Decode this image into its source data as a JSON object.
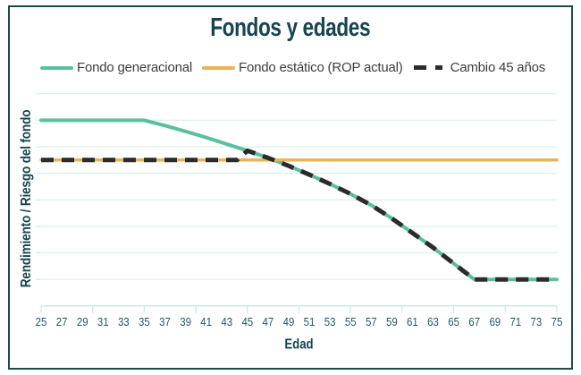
{
  "frame": {
    "border_color": "#1d4b47",
    "background": "#ffffff"
  },
  "colors": {
    "title_text": "#16454f",
    "axis_label_text": "#16454f",
    "tick_label_text": "#1e5766",
    "legend_text": "#3d3d3d",
    "gridline": "#daf1ec",
    "axis_line": "#c8eae3",
    "teal_series": "#5abfa0",
    "orange_series": "#e6b558",
    "black_series": "#2b2b2b"
  },
  "chart_data": {
    "type": "line",
    "title": "Fondos y edades",
    "xlabel": "Edad",
    "ylabel": "Rendimiento / Riesgo del fondo",
    "xlim": [
      25,
      75
    ],
    "ylim": [
      0,
      8.2
    ],
    "x_tick_labels": [
      "25",
      "27",
      "29",
      "31",
      "33",
      "35",
      "37",
      "39",
      "41",
      "43",
      "45",
      "47",
      "49",
      "51",
      "53",
      "55",
      "57",
      "59",
      "61",
      "63",
      "65",
      "67",
      "69",
      "71",
      "73",
      "75"
    ],
    "x_axis_ticks": [
      25,
      30,
      35,
      40,
      45,
      50,
      55,
      60,
      65,
      70,
      75
    ],
    "y_gridlines": [
      1,
      2,
      3,
      4,
      5,
      6,
      7,
      8
    ],
    "grid": "horizontal gridlines only, no y tick labels",
    "legend_position": "top-left above plot",
    "series": [
      {
        "name": "Fondo generacional",
        "color": "#5abfa0",
        "width": 4,
        "dash": null,
        "x": [
          25,
          27,
          29,
          31,
          33,
          35,
          37,
          39,
          41,
          43,
          45,
          47,
          49,
          51,
          53,
          55,
          57,
          59,
          61,
          63,
          65,
          67,
          69,
          71,
          73,
          75
        ],
        "y": [
          7.0,
          7.0,
          7.0,
          7.0,
          7.0,
          7.0,
          6.8,
          6.58,
          6.35,
          6.1,
          5.85,
          5.58,
          5.28,
          4.95,
          4.6,
          4.22,
          3.8,
          3.3,
          2.75,
          2.2,
          1.6,
          1.0,
          1.0,
          1.0,
          1.0,
          1.0
        ]
      },
      {
        "name": "Fondo estático (ROP actual)",
        "color": "#e6b558",
        "width": 3.5,
        "dash": null,
        "x": [
          25,
          75
        ],
        "y": [
          5.5,
          5.5
        ]
      },
      {
        "name": "Cambio 45 años",
        "color": "#2b2b2b",
        "width": 5,
        "dash": "14 9",
        "x": [
          25,
          44,
          45,
          47,
          49,
          51,
          53,
          55,
          57,
          59,
          61,
          63,
          65,
          67,
          69,
          71,
          73,
          75
        ],
        "y": [
          5.5,
          5.5,
          5.85,
          5.58,
          5.28,
          4.95,
          4.6,
          4.22,
          3.8,
          3.3,
          2.75,
          2.2,
          1.6,
          1.0,
          1.0,
          1.0,
          1.0,
          1.0
        ]
      }
    ]
  }
}
